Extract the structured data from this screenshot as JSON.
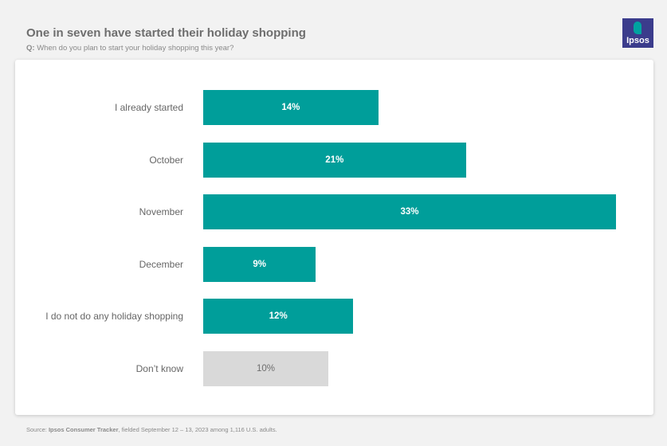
{
  "header": {
    "title": "One in seven have started their holiday shopping",
    "question_prefix": "Q:",
    "question": "When do you plan to start your holiday shopping this year?"
  },
  "logo": {
    "text": "Ipsos",
    "colors": {
      "background": "#3b3c8c",
      "mark": "#00a3a0"
    }
  },
  "footer": {
    "prefix": "Source:",
    "source_name": "Ipsos Consumer Tracker",
    "rest": ", fielded September 12 – 13, 2023 among 1,116 U.S. adults."
  },
  "chart_data": {
    "type": "bar",
    "orientation": "horizontal",
    "categories": [
      "I already started",
      "October",
      "November",
      "December",
      "I do not do any holiday shopping",
      "Don’t know"
    ],
    "values": [
      14,
      21,
      33,
      9,
      12,
      10
    ],
    "value_labels": [
      "14%",
      "21%",
      "33%",
      "9%",
      "12%",
      "10%"
    ],
    "xlim": [
      0,
      33
    ],
    "grid": false,
    "colors": {
      "primary": "#009e9a",
      "muted": "#d9d9d9"
    },
    "muted_categories": [
      "Don’t know"
    ]
  }
}
